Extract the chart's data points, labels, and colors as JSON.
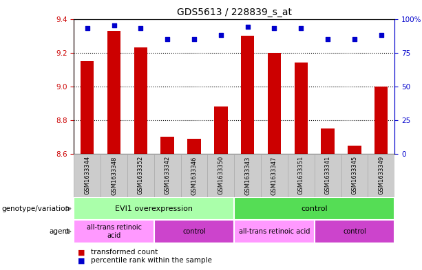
{
  "title": "GDS5613 / 228839_s_at",
  "samples": [
    "GSM1633344",
    "GSM1633348",
    "GSM1633352",
    "GSM1633342",
    "GSM1633346",
    "GSM1633350",
    "GSM1633343",
    "GSM1633347",
    "GSM1633351",
    "GSM1633341",
    "GSM1633345",
    "GSM1633349"
  ],
  "bar_values": [
    9.15,
    9.33,
    9.23,
    8.7,
    8.69,
    8.88,
    9.3,
    9.2,
    9.14,
    8.75,
    8.65,
    9.0
  ],
  "dot_values": [
    93,
    95,
    93,
    85,
    85,
    88,
    94,
    93,
    93,
    85,
    85,
    88
  ],
  "ylim_left": [
    8.6,
    9.4
  ],
  "ylim_right": [
    0,
    100
  ],
  "yticks_left": [
    8.6,
    8.8,
    9.0,
    9.2,
    9.4
  ],
  "yticks_right": [
    0,
    25,
    50,
    75,
    100
  ],
  "bar_color": "#cc0000",
  "dot_color": "#0000cc",
  "bar_width": 0.5,
  "genotype_groups": [
    {
      "label": "EVI1 overexpression",
      "start": 0,
      "end": 6,
      "color": "#aaffaa"
    },
    {
      "label": "control",
      "start": 6,
      "end": 12,
      "color": "#55dd55"
    }
  ],
  "agent_groups": [
    {
      "label": "all-trans retinoic\nacid",
      "start": 0,
      "end": 3,
      "color": "#ff99ff"
    },
    {
      "label": "control",
      "start": 3,
      "end": 6,
      "color": "#cc44cc"
    },
    {
      "label": "all-trans retinoic acid",
      "start": 6,
      "end": 9,
      "color": "#ff99ff"
    },
    {
      "label": "control",
      "start": 9,
      "end": 12,
      "color": "#cc44cc"
    }
  ],
  "left_axis_color": "#cc0000",
  "right_axis_color": "#0000cc",
  "title_fontsize": 10,
  "xtick_fontsize": 6,
  "ytick_fontsize": 7.5,
  "legend_red_label": "transformed count",
  "legend_blue_label": "percentile rank within the sample",
  "geno_label": "genotype/variation",
  "agent_label": "agent",
  "xticklabel_bg": "#cccccc",
  "col_divider_color": "#aaaaaa"
}
